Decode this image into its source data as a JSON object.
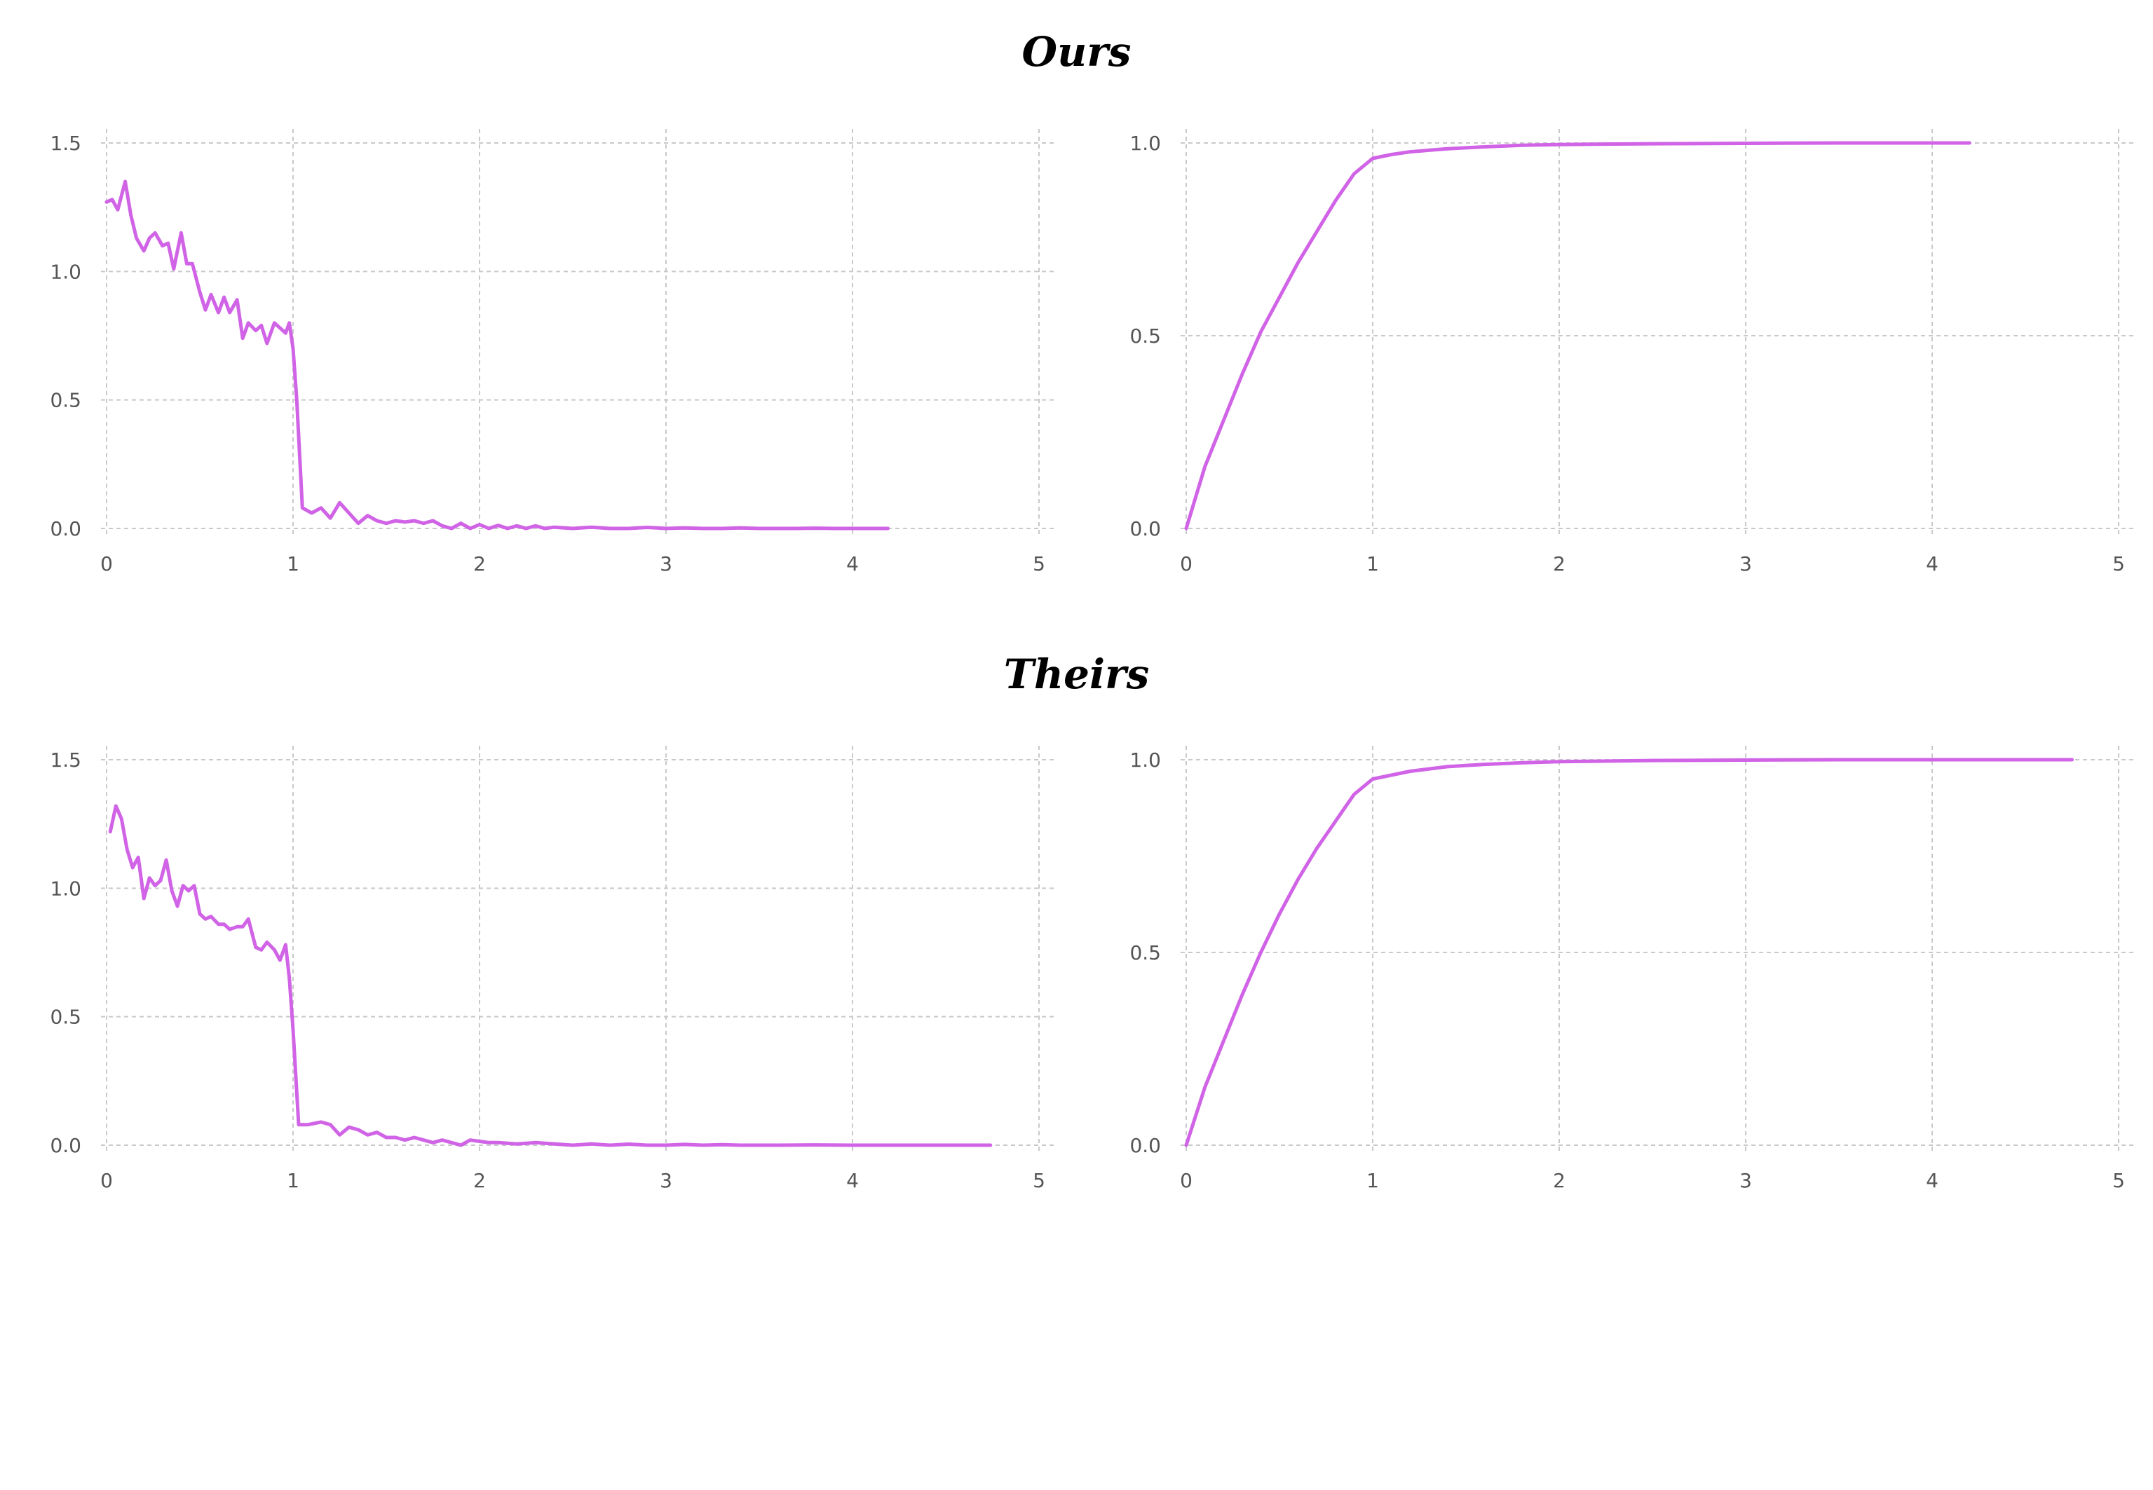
{
  "sections": [
    {
      "title": "Ours"
    },
    {
      "title": "Theirs"
    }
  ],
  "colors": {
    "series": "#d063e6",
    "grid": "#c9c9cc",
    "tick_text": "#555555"
  },
  "chart_data": [
    {
      "type": "line",
      "section": "Ours",
      "grid": true,
      "xlim": [
        0,
        5
      ],
      "ylim": [
        0,
        1.5
      ],
      "x_ticks": [
        "0",
        "1",
        "2",
        "3",
        "4",
        "5"
      ],
      "y_ticks": [
        "0.0",
        "0.5",
        "1.0",
        "1.5"
      ],
      "series": [
        {
          "x": [
            0,
            0.03,
            0.06,
            0.1,
            0.13,
            0.16,
            0.2,
            0.23,
            0.26,
            0.3,
            0.33,
            0.36,
            0.4,
            0.43,
            0.46,
            0.5,
            0.53,
            0.56,
            0.6,
            0.63,
            0.66,
            0.7,
            0.73,
            0.76,
            0.8,
            0.83,
            0.86,
            0.9,
            0.93,
            0.96,
            0.98,
            1.0,
            1.02,
            1.05,
            1.1,
            1.15,
            1.2,
            1.25,
            1.3,
            1.35,
            1.4,
            1.45,
            1.5,
            1.55,
            1.6,
            1.65,
            1.7,
            1.75,
            1.8,
            1.85,
            1.9,
            1.95,
            2.0,
            2.05,
            2.1,
            2.15,
            2.2,
            2.25,
            2.3,
            2.35,
            2.4,
            2.5,
            2.6,
            2.7,
            2.8,
            2.9,
            3.0,
            3.1,
            3.2,
            3.3,
            3.4,
            3.5,
            3.6,
            3.7,
            3.8,
            3.9,
            4.0,
            4.1,
            4.19
          ],
          "y": [
            1.27,
            1.28,
            1.24,
            1.35,
            1.22,
            1.13,
            1.08,
            1.13,
            1.15,
            1.1,
            1.11,
            1.01,
            1.15,
            1.03,
            1.03,
            0.92,
            0.85,
            0.91,
            0.84,
            0.9,
            0.84,
            0.89,
            0.74,
            0.8,
            0.77,
            0.79,
            0.72,
            0.8,
            0.78,
            0.76,
            0.8,
            0.7,
            0.5,
            0.08,
            0.06,
            0.08,
            0.04,
            0.1,
            0.06,
            0.02,
            0.05,
            0.03,
            0.02,
            0.03,
            0.025,
            0.03,
            0.02,
            0.03,
            0.01,
            0.0,
            0.02,
            0.0,
            0.015,
            0.0,
            0.012,
            0.0,
            0.01,
            0.0,
            0.01,
            0.0,
            0.005,
            0.0,
            0.005,
            0.0,
            0.0,
            0.004,
            0.0,
            0.002,
            0.0,
            0.0,
            0.002,
            0.0,
            0.0,
            0.0,
            0.001,
            0.0,
            0.0,
            0.0,
            0.0
          ]
        }
      ]
    },
    {
      "type": "line",
      "section": "Ours",
      "grid": true,
      "xlim": [
        0,
        5
      ],
      "ylim": [
        0,
        1.0
      ],
      "x_ticks": [
        "0",
        "1",
        "2",
        "3",
        "4",
        "5"
      ],
      "y_ticks": [
        "0.0",
        "0.5",
        "1.0"
      ],
      "series": [
        {
          "x": [
            0,
            0.1,
            0.2,
            0.3,
            0.4,
            0.5,
            0.6,
            0.7,
            0.8,
            0.9,
            1.0,
            1.1,
            1.2,
            1.4,
            1.6,
            1.8,
            2.0,
            2.5,
            3.0,
            3.5,
            4.0,
            4.2
          ],
          "y": [
            0.0,
            0.16,
            0.28,
            0.4,
            0.51,
            0.6,
            0.69,
            0.77,
            0.85,
            0.92,
            0.96,
            0.97,
            0.977,
            0.985,
            0.99,
            0.994,
            0.996,
            0.998,
            0.999,
            1.0,
            1.0,
            1.0
          ]
        }
      ]
    },
    {
      "type": "line",
      "section": "Theirs",
      "grid": true,
      "xlim": [
        0,
        5
      ],
      "ylim": [
        0,
        1.5
      ],
      "x_ticks": [
        "0",
        "1",
        "2",
        "3",
        "4",
        "5"
      ],
      "y_ticks": [
        "0.0",
        "0.5",
        "1.0",
        "1.5"
      ],
      "series": [
        {
          "x": [
            0.02,
            0.05,
            0.08,
            0.11,
            0.14,
            0.17,
            0.2,
            0.23,
            0.26,
            0.29,
            0.32,
            0.35,
            0.38,
            0.41,
            0.44,
            0.47,
            0.5,
            0.53,
            0.56,
            0.6,
            0.63,
            0.66,
            0.7,
            0.73,
            0.76,
            0.8,
            0.83,
            0.86,
            0.9,
            0.93,
            0.96,
            0.98,
            1.0,
            1.03,
            1.08,
            1.15,
            1.2,
            1.25,
            1.3,
            1.35,
            1.4,
            1.45,
            1.5,
            1.55,
            1.6,
            1.65,
            1.7,
            1.75,
            1.8,
            1.85,
            1.9,
            1.95,
            2.0,
            2.05,
            2.1,
            2.2,
            2.3,
            2.4,
            2.5,
            2.6,
            2.7,
            2.8,
            2.9,
            3.0,
            3.1,
            3.2,
            3.3,
            3.4,
            3.6,
            3.8,
            4.0,
            4.2,
            4.4,
            4.6,
            4.74
          ],
          "y": [
            1.22,
            1.32,
            1.27,
            1.15,
            1.08,
            1.12,
            0.96,
            1.04,
            1.01,
            1.03,
            1.11,
            0.99,
            0.93,
            1.01,
            0.99,
            1.01,
            0.9,
            0.88,
            0.89,
            0.86,
            0.86,
            0.84,
            0.85,
            0.85,
            0.88,
            0.77,
            0.76,
            0.79,
            0.76,
            0.72,
            0.78,
            0.65,
            0.45,
            0.08,
            0.08,
            0.09,
            0.08,
            0.04,
            0.07,
            0.06,
            0.04,
            0.05,
            0.03,
            0.03,
            0.02,
            0.03,
            0.02,
            0.01,
            0.02,
            0.01,
            0.0,
            0.02,
            0.015,
            0.01,
            0.01,
            0.005,
            0.01,
            0.005,
            0.0,
            0.005,
            0.0,
            0.004,
            0.0,
            0.0,
            0.003,
            0.0,
            0.002,
            0.0,
            0.0,
            0.001,
            0.0,
            0.0,
            0.0,
            0.0,
            0.0
          ]
        }
      ]
    },
    {
      "type": "line",
      "section": "Theirs",
      "grid": true,
      "xlim": [
        0,
        5
      ],
      "ylim": [
        0,
        1.0
      ],
      "x_ticks": [
        "0",
        "1",
        "2",
        "3",
        "4",
        "5"
      ],
      "y_ticks": [
        "0.0",
        "0.5",
        "1.0"
      ],
      "series": [
        {
          "x": [
            0,
            0.1,
            0.2,
            0.3,
            0.4,
            0.5,
            0.6,
            0.7,
            0.8,
            0.9,
            1.0,
            1.1,
            1.2,
            1.4,
            1.6,
            1.8,
            2.0,
            2.5,
            3.0,
            3.5,
            4.0,
            4.5,
            4.75
          ],
          "y": [
            0.0,
            0.15,
            0.27,
            0.39,
            0.5,
            0.6,
            0.69,
            0.77,
            0.84,
            0.91,
            0.95,
            0.96,
            0.97,
            0.982,
            0.988,
            0.992,
            0.995,
            0.998,
            0.999,
            1.0,
            1.0,
            1.0,
            1.0
          ]
        }
      ]
    }
  ]
}
